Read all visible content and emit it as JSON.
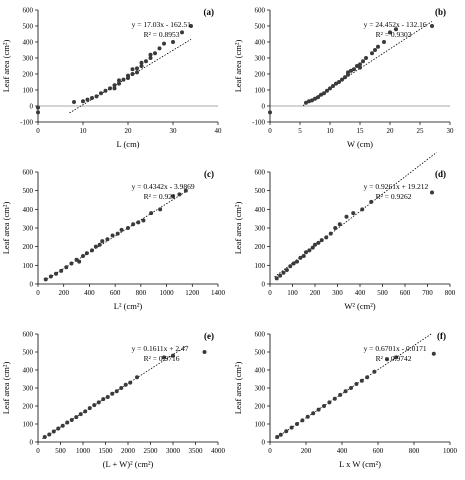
{
  "chart_data": [
    {
      "type": "scatter",
      "panel_label": "(a)",
      "xlabel": "L (cm)",
      "ylabel": "Leaf area (cm²)",
      "xlim": [
        0,
        40
      ],
      "ylim": [
        -100,
        600
      ],
      "xticks": [
        0,
        10,
        20,
        30,
        40
      ],
      "xtick_labels": [
        "0",
        "10",
        "20",
        "30",
        "40"
      ],
      "yticks": [
        -100,
        0,
        100,
        200,
        300,
        400,
        500,
        600
      ],
      "ytick_labels": [
        "-100",
        "0",
        "100",
        "200",
        "300",
        "400",
        "500",
        "600"
      ],
      "equation": "y = 17.03x - 162.51",
      "r2": "R² = 0.8953",
      "trend": {
        "slope": 17.03,
        "intercept": -162.51,
        "x_range": [
          7,
          34
        ]
      },
      "points": [
        [
          8,
          25
        ],
        [
          10,
          30
        ],
        [
          11,
          40
        ],
        [
          12,
          50
        ],
        [
          13,
          60
        ],
        [
          14,
          80
        ],
        [
          15,
          95
        ],
        [
          16,
          110
        ],
        [
          17,
          130
        ],
        [
          17,
          110
        ],
        [
          18,
          140
        ],
        [
          18,
          160
        ],
        [
          19,
          165
        ],
        [
          20,
          190
        ],
        [
          20,
          175
        ],
        [
          21,
          200
        ],
        [
          21,
          230
        ],
        [
          22,
          235
        ],
        [
          22,
          210
        ],
        [
          23,
          250
        ],
        [
          23,
          270
        ],
        [
          24,
          280
        ],
        [
          25,
          300
        ],
        [
          25,
          320
        ],
        [
          26,
          330
        ],
        [
          27,
          360
        ],
        [
          28,
          390
        ],
        [
          30,
          400
        ],
        [
          32,
          460
        ],
        [
          34,
          500
        ],
        [
          0,
          -40
        ],
        [
          0,
          -10
        ]
      ]
    },
    {
      "type": "scatter",
      "panel_label": "(b)",
      "xlabel": "W (cm)",
      "ylabel": "Leaf area (cm²)",
      "xlim": [
        0,
        30
      ],
      "ylim": [
        -100,
        600
      ],
      "xticks": [
        0,
        5,
        10,
        15,
        20,
        25,
        30
      ],
      "xtick_labels": [
        "0",
        "5",
        "10",
        "15",
        "20",
        "25",
        "30"
      ],
      "yticks": [
        -100,
        0,
        100,
        200,
        300,
        400,
        500,
        600
      ],
      "ytick_labels": [
        "-100",
        "0",
        "100",
        "200",
        "300",
        "400",
        "500",
        "600"
      ],
      "equation": "y = 24.452x - 132.16",
      "r2": "R² = 0.9303",
      "trend": {
        "slope": 24.452,
        "intercept": -132.16,
        "x_range": [
          5.5,
          27
        ]
      },
      "points": [
        [
          6,
          20
        ],
        [
          6.5,
          30
        ],
        [
          7,
          35
        ],
        [
          7.5,
          45
        ],
        [
          8,
          55
        ],
        [
          8.5,
          70
        ],
        [
          9,
          80
        ],
        [
          9.5,
          95
        ],
        [
          10,
          110
        ],
        [
          10.5,
          125
        ],
        [
          11,
          140
        ],
        [
          11.5,
          150
        ],
        [
          12,
          165
        ],
        [
          12.5,
          180
        ],
        [
          13,
          195
        ],
        [
          13,
          210
        ],
        [
          13.5,
          220
        ],
        [
          14,
          230
        ],
        [
          14.5,
          250
        ],
        [
          15,
          260
        ],
        [
          15,
          240
        ],
        [
          15.5,
          280
        ],
        [
          16,
          300
        ],
        [
          17,
          330
        ],
        [
          17.5,
          350
        ],
        [
          18,
          370
        ],
        [
          19,
          400
        ],
        [
          20,
          460
        ],
        [
          21,
          480
        ],
        [
          27,
          500
        ],
        [
          0,
          -40
        ]
      ]
    },
    {
      "type": "scatter",
      "panel_label": "(c)",
      "xlabel": "L² (cm²)",
      "ylabel": "Leaf area (cm²)",
      "xlim": [
        0,
        1400
      ],
      "ylim": [
        0,
        600
      ],
      "xticks": [
        0,
        200,
        400,
        600,
        800,
        1000,
        1200,
        1400
      ],
      "xtick_labels": [
        "0",
        "200",
        "400",
        "600",
        "800",
        "1000",
        "1200",
        "1400"
      ],
      "yticks": [
        0,
        100,
        200,
        300,
        400,
        500,
        600
      ],
      "ytick_labels": [
        "0",
        "100",
        "200",
        "300",
        "400",
        "500",
        "600"
      ],
      "equation": "y = 0.4342x - 3.9869",
      "r2": "R² = 0.921",
      "trend": {
        "slope": 0.4342,
        "intercept": -3.9869,
        "x_range": [
          50,
          1150
        ]
      },
      "points": [
        [
          60,
          25
        ],
        [
          100,
          40
        ],
        [
          140,
          55
        ],
        [
          180,
          70
        ],
        [
          220,
          90
        ],
        [
          260,
          110
        ],
        [
          300,
          130
        ],
        [
          320,
          120
        ],
        [
          350,
          150
        ],
        [
          380,
          165
        ],
        [
          420,
          180
        ],
        [
          450,
          200
        ],
        [
          480,
          210
        ],
        [
          500,
          230
        ],
        [
          540,
          240
        ],
        [
          580,
          260
        ],
        [
          620,
          270
        ],
        [
          650,
          290
        ],
        [
          700,
          300
        ],
        [
          740,
          320
        ],
        [
          780,
          330
        ],
        [
          820,
          340
        ],
        [
          880,
          380
        ],
        [
          950,
          400
        ],
        [
          1050,
          470
        ],
        [
          1100,
          480
        ],
        [
          1150,
          500
        ]
      ]
    },
    {
      "type": "scatter",
      "panel_label": "(d)",
      "xlabel": "W² (cm²)",
      "ylabel": "Leaf area (cm²)",
      "xlim": [
        0,
        800
      ],
      "ylim": [
        0,
        600
      ],
      "xticks": [
        0,
        100,
        200,
        300,
        400,
        500,
        600,
        700,
        800
      ],
      "xtick_labels": [
        "0",
        "100",
        "200",
        "300",
        "400",
        "500",
        "600",
        "700",
        "800"
      ],
      "yticks": [
        0,
        100,
        200,
        300,
        400,
        500,
        600
      ],
      "ytick_labels": [
        "0",
        "100",
        "200",
        "300",
        "400",
        "500",
        "600"
      ],
      "equation": "y = 0.9261x + 19.212",
      "r2": "R² = 0.9262",
      "trend": {
        "slope": 0.9261,
        "intercept": 19.212,
        "x_range": [
          20,
          740
        ]
      },
      "points": [
        [
          30,
          30
        ],
        [
          45,
          45
        ],
        [
          60,
          60
        ],
        [
          75,
          75
        ],
        [
          90,
          95
        ],
        [
          105,
          110
        ],
        [
          120,
          120
        ],
        [
          135,
          140
        ],
        [
          150,
          150
        ],
        [
          160,
          170
        ],
        [
          175,
          180
        ],
        [
          190,
          195
        ],
        [
          200,
          210
        ],
        [
          215,
          220
        ],
        [
          230,
          235
        ],
        [
          250,
          250
        ],
        [
          270,
          270
        ],
        [
          290,
          300
        ],
        [
          310,
          320
        ],
        [
          340,
          360
        ],
        [
          370,
          380
        ],
        [
          410,
          400
        ],
        [
          450,
          440
        ],
        [
          720,
          490
        ]
      ]
    },
    {
      "type": "scatter",
      "panel_label": "(e)",
      "xlabel": "(L + W)² (cm²)",
      "ylabel": "Leaf area (cm²)",
      "xlim": [
        0,
        4000
      ],
      "ylim": [
        0,
        600
      ],
      "xticks": [
        0,
        500,
        1000,
        1500,
        2000,
        2500,
        3000,
        3500,
        4000
      ],
      "xtick_labels": [
        "0",
        "500",
        "1000",
        "1500",
        "2000",
        "2500",
        "3000",
        "3500",
        "4000"
      ],
      "yticks": [
        0,
        100,
        200,
        300,
        400,
        500,
        600
      ],
      "ytick_labels": [
        "0",
        "100",
        "200",
        "300",
        "400",
        "500",
        "600"
      ],
      "equation": "y = 0.1611x + 2.47",
      "r2": "R² = 0.9716",
      "trend": {
        "slope": 0.1611,
        "intercept": 2.47,
        "x_range": [
          100,
          3300
        ]
      },
      "points": [
        [
          150,
          28
        ],
        [
          250,
          42
        ],
        [
          350,
          58
        ],
        [
          450,
          75
        ],
        [
          550,
          90
        ],
        [
          650,
          108
        ],
        [
          750,
          122
        ],
        [
          850,
          138
        ],
        [
          950,
          155
        ],
        [
          1050,
          170
        ],
        [
          1150,
          188
        ],
        [
          1250,
          205
        ],
        [
          1350,
          220
        ],
        [
          1450,
          238
        ],
        [
          1550,
          250
        ],
        [
          1650,
          268
        ],
        [
          1750,
          282
        ],
        [
          1850,
          300
        ],
        [
          1950,
          318
        ],
        [
          2050,
          330
        ],
        [
          2200,
          360
        ],
        [
          2800,
          470
        ],
        [
          3000,
          480
        ],
        [
          3700,
          500
        ]
      ]
    },
    {
      "type": "scatter",
      "panel_label": "(f)",
      "xlabel": "L x W (cm²)",
      "ylabel": "Leaf area (cm²)",
      "xlim": [
        0,
        1000
      ],
      "ylim": [
        0,
        600
      ],
      "xticks": [
        0,
        200,
        400,
        600,
        800,
        1000
      ],
      "xtick_labels": [
        "0",
        "200",
        "400",
        "600",
        "800",
        "1000"
      ],
      "yticks": [
        0,
        100,
        200,
        300,
        400,
        500,
        600
      ],
      "ytick_labels": [
        "0",
        "100",
        "200",
        "300",
        "400",
        "500",
        "600"
      ],
      "equation": "y = 0.6701x - 0.0171",
      "r2": "R² = 0.9742",
      "trend": {
        "slope": 0.6701,
        "intercept": -0.0171,
        "x_range": [
          30,
          900
        ]
      },
      "points": [
        [
          40,
          28
        ],
        [
          60,
          40
        ],
        [
          90,
          60
        ],
        [
          120,
          80
        ],
        [
          150,
          100
        ],
        [
          180,
          120
        ],
        [
          210,
          140
        ],
        [
          240,
          160
        ],
        [
          270,
          180
        ],
        [
          300,
          200
        ],
        [
          330,
          220
        ],
        [
          360,
          240
        ],
        [
          390,
          262
        ],
        [
          420,
          282
        ],
        [
          450,
          300
        ],
        [
          480,
          322
        ],
        [
          510,
          340
        ],
        [
          540,
          360
        ],
        [
          580,
          390
        ],
        [
          650,
          460
        ],
        [
          700,
          470
        ],
        [
          910,
          490
        ]
      ]
    }
  ]
}
